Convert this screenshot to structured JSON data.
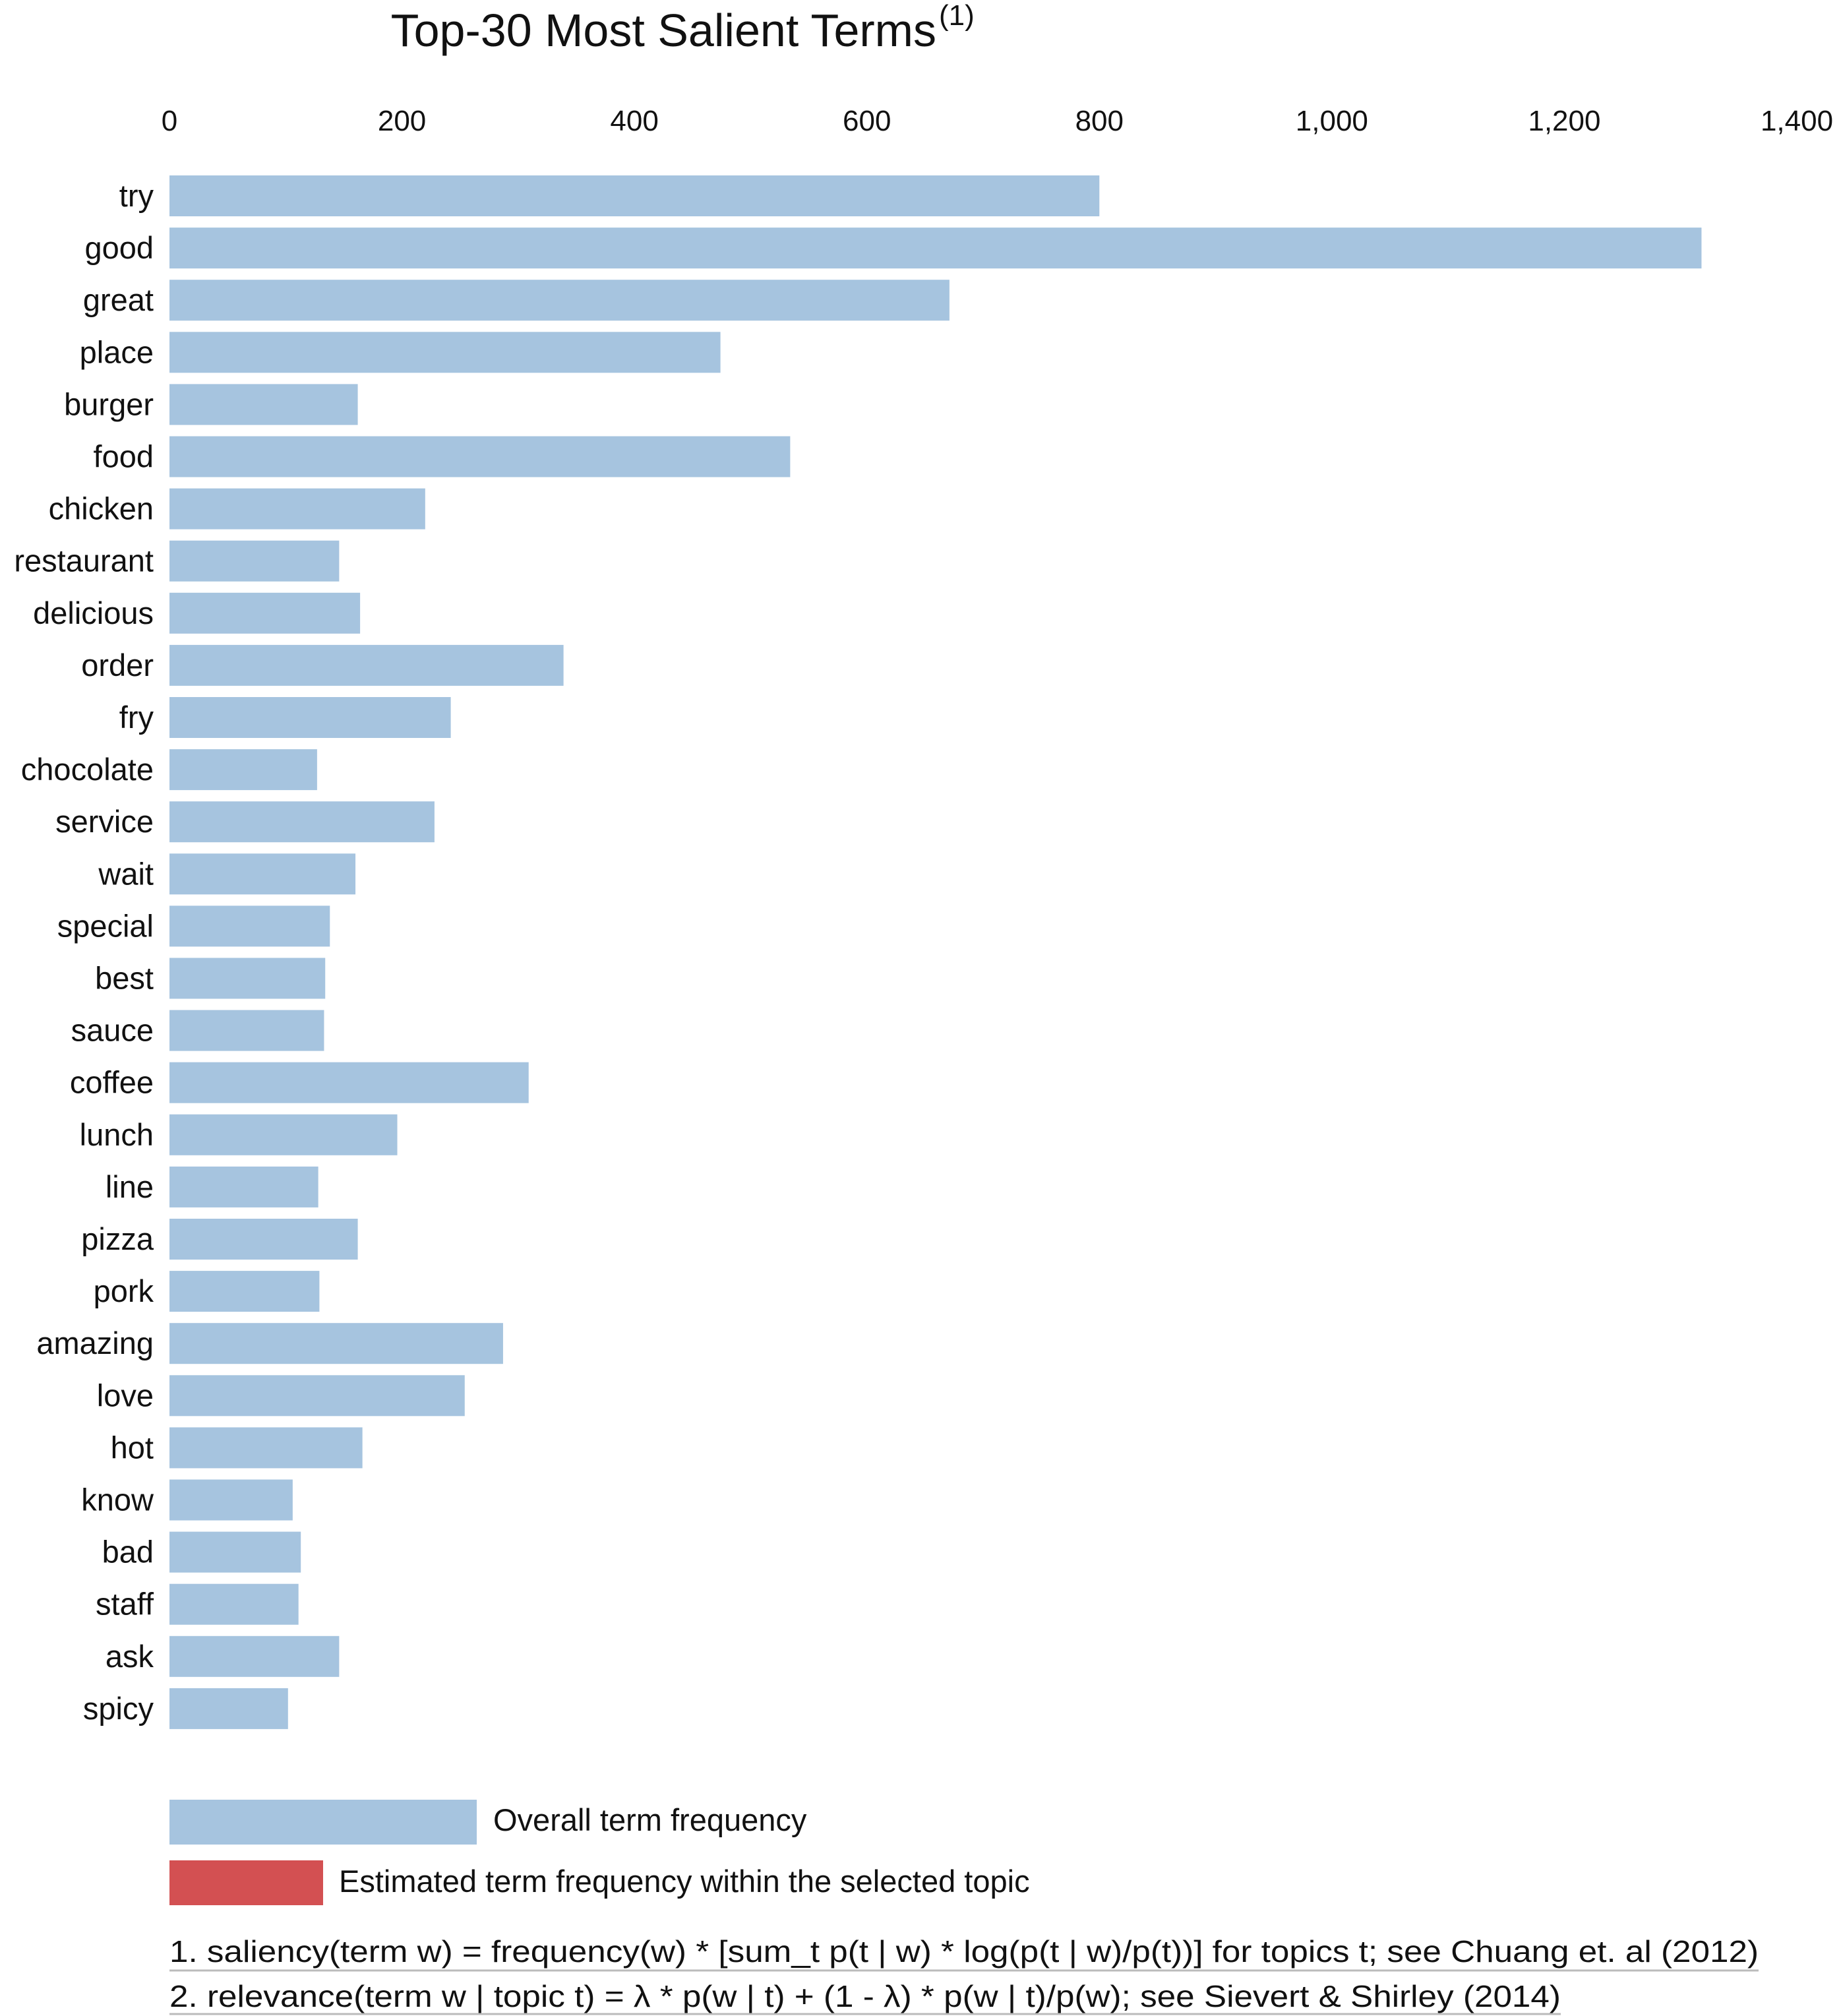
{
  "chart_data": {
    "type": "bar",
    "orientation": "horizontal",
    "title": "Top-30 Most Salient Terms",
    "title_superscript": "(1)",
    "xlabel": "",
    "ylabel": "",
    "xlim": [
      0,
      1400
    ],
    "x_ticks": [
      0,
      200,
      400,
      600,
      800,
      1000,
      1200,
      1400
    ],
    "x_tick_labels": [
      "0",
      "200",
      "400",
      "600",
      "800",
      "1,000",
      "1,200",
      "1,400"
    ],
    "axis_position": "top",
    "grid": false,
    "categories": [
      "try",
      "good",
      "great",
      "place",
      "burger",
      "food",
      "chicken",
      "restaurant",
      "delicious",
      "order",
      "fry",
      "chocolate",
      "service",
      "wait",
      "special",
      "best",
      "sauce",
      "coffee",
      "lunch",
      "line",
      "pizza",
      "pork",
      "amazing",
      "love",
      "hot",
      "know",
      "bad",
      "staff",
      "ask",
      "spicy"
    ],
    "series": [
      {
        "name": "Overall term frequency",
        "color": "#a6c4df",
        "values": [
          800,
          1318,
          671,
          474,
          162,
          534,
          220,
          146,
          164,
          339,
          242,
          127,
          228,
          160,
          138,
          134,
          133,
          309,
          196,
          128,
          162,
          129,
          287,
          254,
          166,
          106,
          113,
          111,
          146,
          102
        ]
      }
    ],
    "legend": {
      "placement": "bottom-left",
      "entries": [
        {
          "label": "Overall term frequency",
          "color": "#a6c4df"
        },
        {
          "label": "Estimated term frequency within the selected topic",
          "color": "#d35052"
        }
      ]
    },
    "footnotes": [
      "1. saliency(term w) = frequency(w) * [sum_t p(t | w) * log(p(t | w)/p(t))] for topics t; see Chuang et. al (2012)",
      "2. relevance(term w | topic t) = λ * p(w | t) + (1 - λ) * p(w | t)/p(w); see Sievert & Shirley (2014)"
    ]
  }
}
